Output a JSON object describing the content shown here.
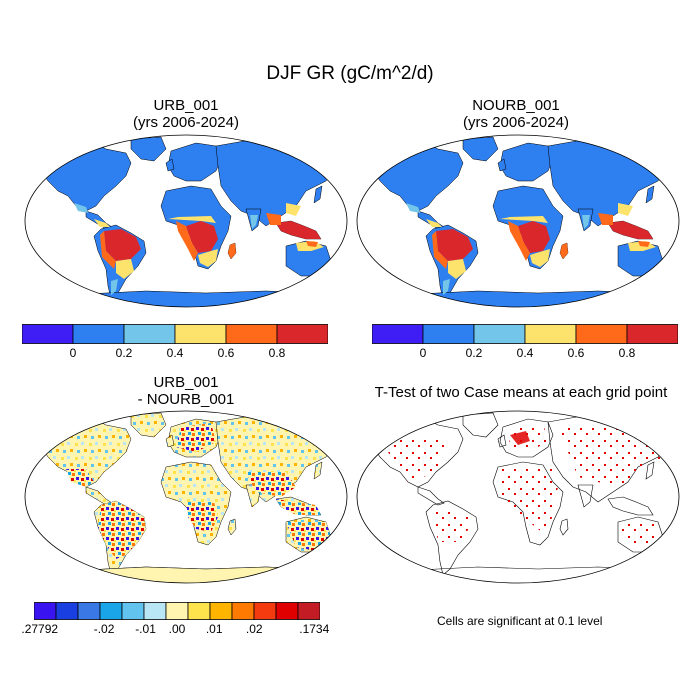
{
  "figure": {
    "title": "DJF GR (gC/m^2/d)"
  },
  "panels": {
    "urb": {
      "title_line1": "URB_001",
      "title_line2": "(yrs 2006-2024)",
      "colorbar": {
        "colors": [
          "#3e1ef5",
          "#2e7ff0",
          "#73c6ea",
          "#fde26c",
          "#ff6a1a",
          "#d9272b"
        ],
        "labels": [
          "0",
          "0.2",
          "0.4",
          "0.6",
          "0.8"
        ]
      }
    },
    "nourb": {
      "title_line1": "NOURB_001",
      "title_line2": "(yrs 2006-2024)",
      "colorbar": {
        "colors": [
          "#3e1ef5",
          "#2e7ff0",
          "#73c6ea",
          "#fde26c",
          "#ff6a1a",
          "#d9272b"
        ],
        "labels": [
          "0",
          "0.2",
          "0.4",
          "0.6",
          "0.8"
        ]
      }
    },
    "diff": {
      "title_line1": "URB_001",
      "title_line2": "- NOURB_001",
      "colorbar": {
        "colors": [
          "#3a14f0",
          "#1a3fe0",
          "#3a78e6",
          "#1aa5e8",
          "#63c3ef",
          "#b9e6f5",
          "#fff5b0",
          "#ffe34d",
          "#ffb400",
          "#ff7a00",
          "#f43b10",
          "#e00000",
          "#c41c24"
        ],
        "labels": [
          ".27792",
          "-.02",
          "-.01",
          ".00",
          ".01",
          ".02",
          ".1734"
        ]
      }
    },
    "ttest": {
      "title": "T-Test of two Case means at each grid point",
      "note": "Cells are significant at 0.1 level"
    }
  }
}
